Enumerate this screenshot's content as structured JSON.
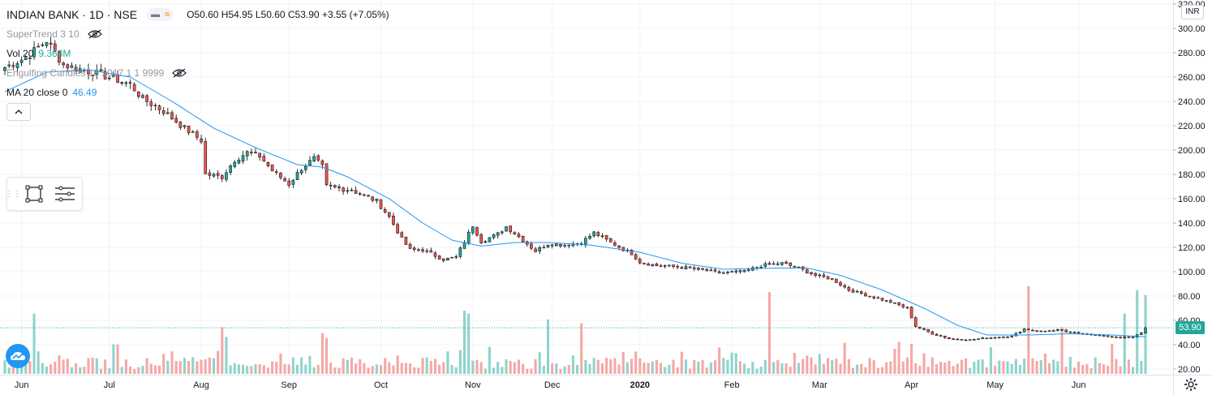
{
  "header": {
    "symbol": "INDIAN BANK · 1D · NSE",
    "open": "O50.60",
    "high": "H54.95",
    "low": "L50.60",
    "close": "C53.90",
    "change": "+3.55 (+7.05%)"
  },
  "indicators": {
    "supertrend": {
      "name": "SuperTrend 3 10"
    },
    "volume": {
      "name": "Vol 20",
      "value": "9.368M"
    },
    "engulfing": {
      "name": "Engulfing Candles 10 2017 1 1 9999"
    },
    "ma": {
      "name": "MA 20 close 0",
      "value": "46.49"
    }
  },
  "price_axis": {
    "currency": "INR",
    "current_price": "53.90",
    "tick_labels": [
      "20.00",
      "40.00",
      "60.00",
      "80.00",
      "100.00",
      "120.00",
      "140.00",
      "160.00",
      "180.00",
      "200.00",
      "220.00",
      "240.00",
      "260.00",
      "280.00",
      "300.00",
      "320.00"
    ]
  },
  "colors": {
    "up": "#26a69a",
    "down": "#ef5350",
    "vol_up": "#8fd3cc",
    "vol_down": "#f4a8a6",
    "ma_line": "#2196f3",
    "grid": "#f0f3fa",
    "text": "#131722",
    "muted": "#9598a1"
  },
  "chart_data": {
    "type": "candlestick",
    "title": "INDIAN BANK · 1D · NSE",
    "x_tick_labels": [
      "Jun",
      "Jul",
      "Aug",
      "Sep",
      "Oct",
      "Nov",
      "Dec",
      "2020",
      "Feb",
      "Mar",
      "Apr",
      "May",
      "Jun"
    ],
    "ylim": [
      16,
      320
    ],
    "close_anchors": [
      {
        "d": 0,
        "c": 268
      },
      {
        "d": 5,
        "c": 276
      },
      {
        "d": 10,
        "c": 290
      },
      {
        "d": 14,
        "c": 270
      },
      {
        "d": 22,
        "c": 263
      },
      {
        "d": 30,
        "c": 254
      },
      {
        "d": 33,
        "c": 242
      },
      {
        "d": 38,
        "c": 232
      },
      {
        "d": 43,
        "c": 218
      },
      {
        "d": 47,
        "c": 208
      },
      {
        "d": 48,
        "c": 180
      },
      {
        "d": 52,
        "c": 178
      },
      {
        "d": 55,
        "c": 192
      },
      {
        "d": 58,
        "c": 198
      },
      {
        "d": 61,
        "c": 195
      },
      {
        "d": 64,
        "c": 183
      },
      {
        "d": 68,
        "c": 172
      },
      {
        "d": 71,
        "c": 185
      },
      {
        "d": 74,
        "c": 193
      },
      {
        "d": 76,
        "c": 186
      },
      {
        "d": 77,
        "c": 170
      },
      {
        "d": 83,
        "c": 167
      },
      {
        "d": 89,
        "c": 158
      },
      {
        "d": 92,
        "c": 145
      },
      {
        "d": 95,
        "c": 127
      },
      {
        "d": 97,
        "c": 118
      },
      {
        "d": 100,
        "c": 118
      },
      {
        "d": 105,
        "c": 110
      },
      {
        "d": 108,
        "c": 112
      },
      {
        "d": 110,
        "c": 125
      },
      {
        "d": 112,
        "c": 138
      },
      {
        "d": 114,
        "c": 125
      },
      {
        "d": 118,
        "c": 131
      },
      {
        "d": 120,
        "c": 137
      },
      {
        "d": 124,
        "c": 126
      },
      {
        "d": 127,
        "c": 117
      },
      {
        "d": 130,
        "c": 123
      },
      {
        "d": 134,
        "c": 122
      },
      {
        "d": 138,
        "c": 124
      },
      {
        "d": 141,
        "c": 132
      },
      {
        "d": 146,
        "c": 122
      },
      {
        "d": 150,
        "c": 115
      },
      {
        "d": 152,
        "c": 108
      },
      {
        "d": 156,
        "c": 105
      },
      {
        "d": 161,
        "c": 104
      },
      {
        "d": 166,
        "c": 102
      },
      {
        "d": 171,
        "c": 99
      },
      {
        "d": 177,
        "c": 100
      },
      {
        "d": 181,
        "c": 105
      },
      {
        "d": 186,
        "c": 107
      },
      {
        "d": 190,
        "c": 103
      },
      {
        "d": 194,
        "c": 97
      },
      {
        "d": 198,
        "c": 94
      },
      {
        "d": 202,
        "c": 85
      },
      {
        "d": 207,
        "c": 80
      },
      {
        "d": 212,
        "c": 75
      },
      {
        "d": 216,
        "c": 70
      },
      {
        "d": 218,
        "c": 55
      },
      {
        "d": 222,
        "c": 49
      },
      {
        "d": 226,
        "c": 45
      },
      {
        "d": 231,
        "c": 44
      },
      {
        "d": 236,
        "c": 46
      },
      {
        "d": 241,
        "c": 47
      },
      {
        "d": 244,
        "c": 53
      },
      {
        "d": 248,
        "c": 51
      },
      {
        "d": 252,
        "c": 52
      },
      {
        "d": 255,
        "c": 50
      },
      {
        "d": 259,
        "c": 49
      },
      {
        "d": 263,
        "c": 47
      },
      {
        "d": 267,
        "c": 46
      },
      {
        "d": 270,
        "c": 46
      },
      {
        "d": 272,
        "c": 50
      },
      {
        "d": 273,
        "c": 53.9
      }
    ],
    "ma_anchors": [
      {
        "d": 0,
        "c": 248
      },
      {
        "d": 10,
        "c": 264
      },
      {
        "d": 20,
        "c": 266
      },
      {
        "d": 30,
        "c": 260
      },
      {
        "d": 40,
        "c": 240
      },
      {
        "d": 50,
        "c": 218
      },
      {
        "d": 60,
        "c": 202
      },
      {
        "d": 70,
        "c": 188
      },
      {
        "d": 76,
        "c": 186
      },
      {
        "d": 82,
        "c": 178
      },
      {
        "d": 92,
        "c": 160
      },
      {
        "d": 100,
        "c": 140
      },
      {
        "d": 107,
        "c": 126
      },
      {
        "d": 114,
        "c": 121
      },
      {
        "d": 122,
        "c": 124
      },
      {
        "d": 130,
        "c": 124
      },
      {
        "d": 140,
        "c": 122
      },
      {
        "d": 152,
        "c": 116
      },
      {
        "d": 162,
        "c": 107
      },
      {
        "d": 172,
        "c": 102
      },
      {
        "d": 184,
        "c": 103
      },
      {
        "d": 192,
        "c": 103
      },
      {
        "d": 200,
        "c": 97
      },
      {
        "d": 210,
        "c": 85
      },
      {
        "d": 220,
        "c": 70
      },
      {
        "d": 228,
        "c": 56
      },
      {
        "d": 235,
        "c": 48
      },
      {
        "d": 245,
        "c": 48
      },
      {
        "d": 255,
        "c": 49
      },
      {
        "d": 265,
        "c": 48
      },
      {
        "d": 273,
        "c": 46.5
      }
    ],
    "volume_spikes": [
      {
        "d": 7,
        "h": 0.62
      },
      {
        "d": 52,
        "h": 0.48
      },
      {
        "d": 53,
        "h": 0.38
      },
      {
        "d": 76,
        "h": 0.42
      },
      {
        "d": 77,
        "h": 0.37
      },
      {
        "d": 110,
        "h": 0.65
      },
      {
        "d": 111,
        "h": 0.62
      },
      {
        "d": 130,
        "h": 0.56
      },
      {
        "d": 138,
        "h": 0.52
      },
      {
        "d": 183,
        "h": 0.84
      },
      {
        "d": 245,
        "h": 0.9
      },
      {
        "d": 253,
        "h": 0.48
      },
      {
        "d": 268,
        "h": 0.62
      },
      {
        "d": 271,
        "h": 0.86
      },
      {
        "d": 273,
        "h": 0.81
      }
    ]
  }
}
